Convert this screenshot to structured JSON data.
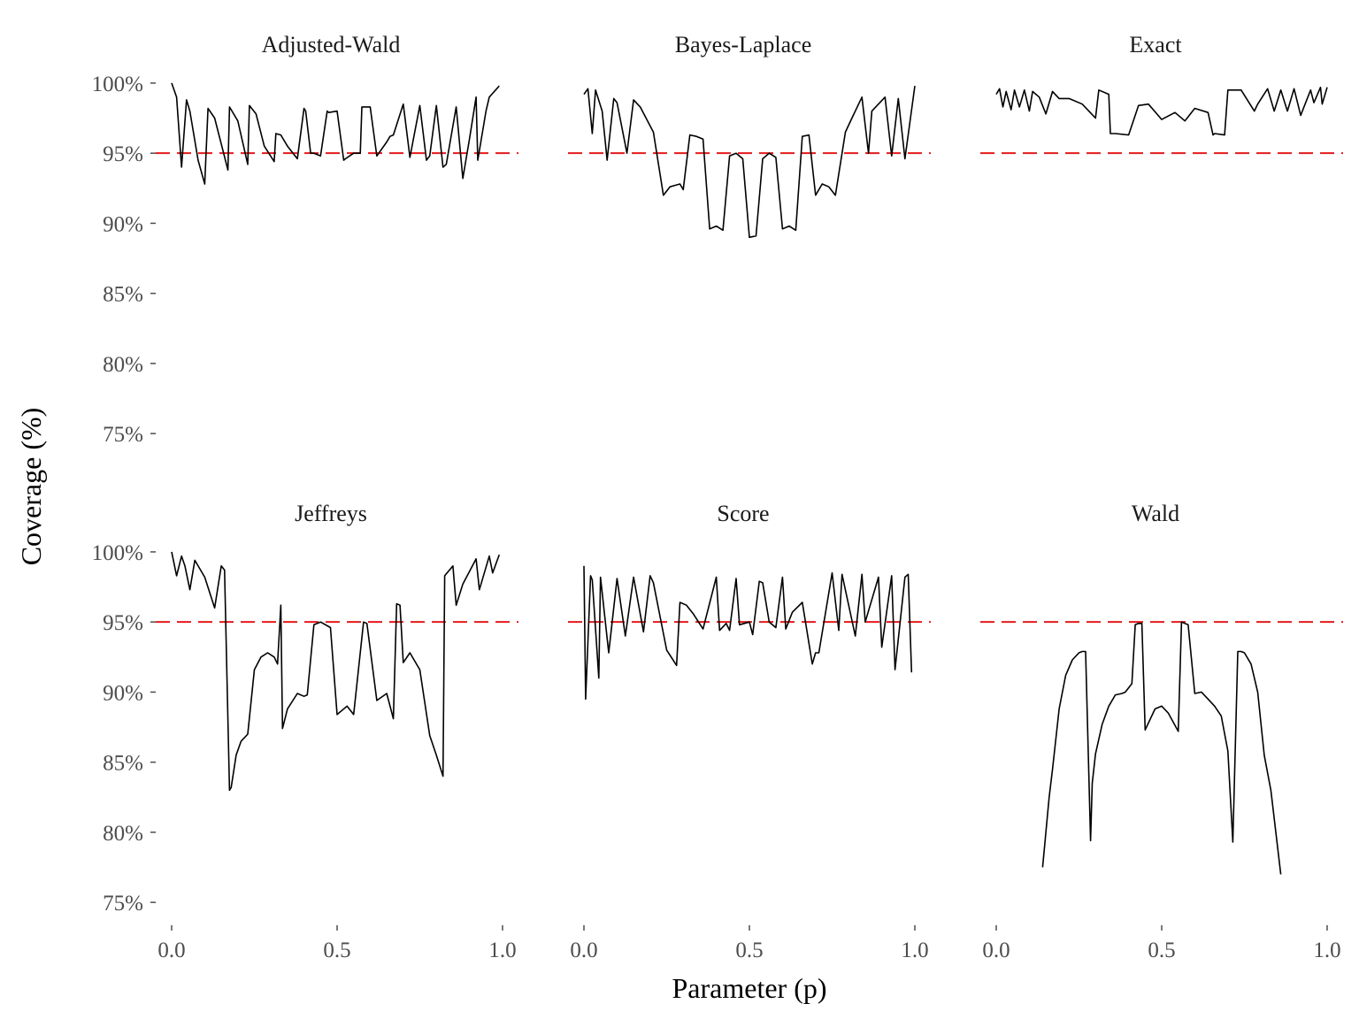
{
  "chart_data": {
    "type": "line",
    "xlabel": "Parameter (p)",
    "ylabel": "Coverage (%)",
    "xlim": [
      0,
      1
    ],
    "ylim": [
      74,
      100.5
    ],
    "x_ticks": [
      0.0,
      0.5,
      1.0
    ],
    "x_tick_labels": [
      "0.0",
      "0.5",
      "1.0"
    ],
    "y_ticks": [
      75,
      80,
      85,
      90,
      95,
      100
    ],
    "y_tick_labels": [
      "75%",
      "80%",
      "85%",
      "90%",
      "95%",
      "100%"
    ],
    "reference_line": {
      "y": 95,
      "color": "#e41a1c",
      "style": "dashed"
    },
    "grid": false,
    "layout": "facet grid 2 rows x 3 columns, shared axes",
    "line_color": "#000000",
    "panels": [
      {
        "title": "Adjusted-Wald",
        "x": [
          0.0,
          0.015,
          0.03,
          0.045,
          0.055,
          0.08,
          0.1,
          0.11,
          0.13,
          0.17,
          0.175,
          0.2,
          0.23,
          0.235,
          0.255,
          0.28,
          0.31,
          0.315,
          0.33,
          0.35,
          0.38,
          0.4,
          0.405,
          0.42,
          0.43,
          0.45,
          0.47,
          0.475,
          0.5,
          0.52,
          0.525,
          0.55,
          0.57,
          0.575,
          0.6,
          0.62,
          0.65,
          0.66,
          0.67,
          0.7,
          0.72,
          0.75,
          0.77,
          0.78,
          0.8,
          0.82,
          0.83,
          0.86,
          0.88,
          0.9,
          0.92,
          0.925,
          0.95,
          0.96,
          0.99
        ],
        "y": [
          100.0,
          99.0,
          94.0,
          98.8,
          98.0,
          94.5,
          92.8,
          98.2,
          97.5,
          93.8,
          98.3,
          97.3,
          94.2,
          98.4,
          97.8,
          95.5,
          94.4,
          96.4,
          96.3,
          95.5,
          94.6,
          98.2,
          98.0,
          95.0,
          95.0,
          94.8,
          98.0,
          97.9,
          98.0,
          94.5,
          94.6,
          95.0,
          95.0,
          98.3,
          98.3,
          94.8,
          95.8,
          96.2,
          96.3,
          98.5,
          94.7,
          98.4,
          94.5,
          94.8,
          98.4,
          94.0,
          94.2,
          98.3,
          93.2,
          96.0,
          99.0,
          94.5,
          98.0,
          99.0,
          99.8
        ]
      },
      {
        "title": "Bayes-Laplace",
        "x": [
          0.0,
          0.012,
          0.025,
          0.035,
          0.055,
          0.07,
          0.09,
          0.1,
          0.13,
          0.15,
          0.17,
          0.21,
          0.24,
          0.26,
          0.29,
          0.3,
          0.32,
          0.34,
          0.36,
          0.38,
          0.4,
          0.42,
          0.44,
          0.46,
          0.48,
          0.5,
          0.52,
          0.54,
          0.56,
          0.58,
          0.6,
          0.62,
          0.64,
          0.66,
          0.68,
          0.7,
          0.72,
          0.74,
          0.76,
          0.79,
          0.81,
          0.84,
          0.86,
          0.87,
          0.91,
          0.93,
          0.95,
          0.97,
          1.0
        ],
        "y": [
          99.2,
          99.6,
          96.4,
          99.5,
          98.0,
          94.5,
          98.9,
          98.6,
          95.0,
          98.8,
          98.3,
          96.5,
          92.0,
          92.6,
          92.8,
          92.4,
          96.3,
          96.2,
          96.0,
          89.6,
          89.8,
          89.5,
          94.8,
          95.0,
          94.6,
          89.0,
          89.1,
          94.6,
          95.0,
          94.7,
          89.6,
          89.8,
          89.5,
          96.2,
          96.3,
          92.0,
          92.8,
          92.6,
          92.0,
          96.5,
          97.5,
          99.0,
          95.0,
          98.0,
          99.0,
          94.8,
          98.9,
          94.6,
          99.8
        ]
      },
      {
        "title": "Exact",
        "x": [
          0.0,
          0.01,
          0.02,
          0.03,
          0.045,
          0.055,
          0.07,
          0.085,
          0.1,
          0.11,
          0.13,
          0.15,
          0.17,
          0.19,
          0.22,
          0.26,
          0.3,
          0.31,
          0.34,
          0.345,
          0.36,
          0.4,
          0.43,
          0.46,
          0.5,
          0.54,
          0.57,
          0.6,
          0.64,
          0.655,
          0.66,
          0.69,
          0.7,
          0.74,
          0.78,
          0.79,
          0.82,
          0.84,
          0.86,
          0.88,
          0.9,
          0.92,
          0.95,
          0.96,
          0.98,
          0.985,
          1.0
        ],
        "y": [
          99.2,
          99.6,
          98.3,
          99.4,
          98.1,
          99.5,
          98.3,
          99.5,
          98.0,
          99.4,
          99.0,
          97.8,
          99.4,
          98.9,
          98.9,
          98.5,
          97.5,
          99.5,
          99.2,
          96.4,
          96.4,
          96.3,
          98.4,
          98.5,
          97.4,
          97.9,
          97.3,
          98.2,
          97.9,
          96.3,
          96.4,
          96.3,
          99.5,
          99.5,
          98.0,
          98.5,
          99.6,
          98.0,
          99.5,
          98.0,
          99.6,
          97.7,
          99.5,
          98.6,
          99.7,
          98.5,
          99.7
        ]
      },
      {
        "title": "Jeffreys",
        "x": [
          0.0,
          0.015,
          0.03,
          0.04,
          0.055,
          0.07,
          0.075,
          0.1,
          0.13,
          0.15,
          0.16,
          0.175,
          0.18,
          0.195,
          0.21,
          0.23,
          0.25,
          0.27,
          0.29,
          0.31,
          0.32,
          0.33,
          0.335,
          0.35,
          0.38,
          0.4,
          0.41,
          0.43,
          0.45,
          0.48,
          0.5,
          0.53,
          0.55,
          0.58,
          0.59,
          0.62,
          0.65,
          0.67,
          0.68,
          0.69,
          0.7,
          0.72,
          0.75,
          0.78,
          0.8,
          0.82,
          0.825,
          0.85,
          0.86,
          0.88,
          0.92,
          0.93,
          0.96,
          0.97,
          0.99
        ],
        "y": [
          100.0,
          98.3,
          99.7,
          99.0,
          97.3,
          99.4,
          99.2,
          98.2,
          96.0,
          99.0,
          98.7,
          83.0,
          83.2,
          85.5,
          86.5,
          87.0,
          91.6,
          92.5,
          92.8,
          92.5,
          92.0,
          96.2,
          87.4,
          88.8,
          89.9,
          89.7,
          89.8,
          94.8,
          95.0,
          94.6,
          88.4,
          89.0,
          88.4,
          95.0,
          94.9,
          89.4,
          89.9,
          88.1,
          96.3,
          96.2,
          92.1,
          92.8,
          91.6,
          86.9,
          85.5,
          84.0,
          98.3,
          99.0,
          96.2,
          97.7,
          99.5,
          97.3,
          99.7,
          98.5,
          99.8
        ]
      },
      {
        "title": "Score",
        "x": [
          0.0,
          0.005,
          0.02,
          0.025,
          0.045,
          0.05,
          0.075,
          0.1,
          0.125,
          0.15,
          0.18,
          0.2,
          0.21,
          0.25,
          0.28,
          0.29,
          0.31,
          0.33,
          0.36,
          0.4,
          0.41,
          0.43,
          0.44,
          0.46,
          0.47,
          0.5,
          0.51,
          0.53,
          0.54,
          0.56,
          0.58,
          0.6,
          0.61,
          0.63,
          0.66,
          0.69,
          0.7,
          0.71,
          0.75,
          0.77,
          0.78,
          0.82,
          0.84,
          0.85,
          0.89,
          0.9,
          0.93,
          0.94,
          0.97,
          0.98,
          0.99
        ],
        "y": [
          99.0,
          89.5,
          98.3,
          98.0,
          91.0,
          98.2,
          92.8,
          98.1,
          94.0,
          98.2,
          94.3,
          98.3,
          97.8,
          93.0,
          91.9,
          96.4,
          96.2,
          95.6,
          94.5,
          98.2,
          94.4,
          94.9,
          94.4,
          98.1,
          94.8,
          95.0,
          94.1,
          97.9,
          97.8,
          95.0,
          94.6,
          98.2,
          94.5,
          95.7,
          96.4,
          92.0,
          92.8,
          92.8,
          98.5,
          94.4,
          98.4,
          94.0,
          98.4,
          95.0,
          98.2,
          93.2,
          98.3,
          91.6,
          98.2,
          98.4,
          91.4
        ]
      },
      {
        "title": "Wald",
        "x": [
          0.14,
          0.15,
          0.16,
          0.17,
          0.19,
          0.21,
          0.23,
          0.25,
          0.26,
          0.27,
          0.285,
          0.29,
          0.3,
          0.32,
          0.34,
          0.36,
          0.38,
          0.39,
          0.41,
          0.42,
          0.43,
          0.44,
          0.45,
          0.48,
          0.5,
          0.52,
          0.55,
          0.56,
          0.57,
          0.58,
          0.6,
          0.62,
          0.64,
          0.66,
          0.68,
          0.7,
          0.715,
          0.73,
          0.74,
          0.75,
          0.77,
          0.79,
          0.81,
          0.83,
          0.845,
          0.86
        ],
        "y": [
          77.5,
          80.0,
          82.5,
          84.5,
          88.8,
          91.2,
          92.3,
          92.8,
          92.9,
          92.9,
          79.4,
          83.5,
          85.6,
          87.7,
          89.0,
          89.8,
          89.9,
          90.0,
          90.6,
          94.8,
          94.9,
          94.9,
          87.3,
          88.8,
          89.0,
          88.5,
          87.2,
          95.0,
          94.9,
          94.8,
          89.9,
          90.0,
          89.5,
          89.0,
          88.3,
          85.8,
          79.3,
          92.9,
          92.9,
          92.8,
          92.0,
          90.0,
          85.5,
          83.0,
          80.0,
          77.0
        ]
      }
    ]
  }
}
